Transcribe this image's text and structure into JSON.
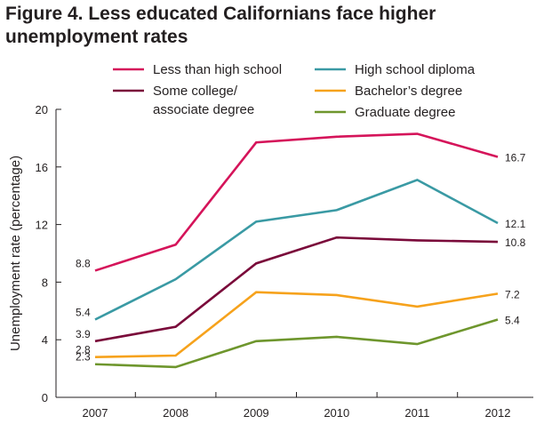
{
  "chart_data": {
    "type": "line",
    "title_line1": "Figure 4. Less educated Californians face higher",
    "title_line2": "unemployment rates",
    "ylabel": "Unemployment rate (percentage)",
    "xlabel": "",
    "categories": [
      "2007",
      "2008",
      "2009",
      "2010",
      "2011",
      "2012"
    ],
    "ylim": [
      0,
      20
    ],
    "yticks": [
      0,
      4,
      8,
      12,
      16,
      20
    ],
    "grid": false,
    "legend_placement": "top",
    "series": [
      {
        "name": "Less than high school",
        "color": "#d5145a",
        "values": [
          8.8,
          10.6,
          17.7,
          18.1,
          18.3,
          16.7
        ],
        "start_label": "8.8",
        "end_label": "16.7"
      },
      {
        "name": "High school diploma",
        "color": "#3a9aa4",
        "values": [
          5.4,
          8.2,
          12.2,
          13.0,
          15.1,
          12.1
        ],
        "start_label": "5.4",
        "end_label": "12.1"
      },
      {
        "name": "Some college/ associate degree",
        "legend_lines": [
          "Some college/",
          "associate degree"
        ],
        "color": "#7a0a3a",
        "values": [
          3.9,
          4.9,
          9.3,
          11.1,
          10.9,
          10.8
        ],
        "start_label": "3.9",
        "end_label": "10.8"
      },
      {
        "name": "Bachelor’s degree",
        "color": "#f6a21c",
        "values": [
          2.8,
          2.9,
          7.3,
          7.1,
          6.3,
          7.2
        ],
        "start_label": "2.8",
        "end_label": "7.2"
      },
      {
        "name": "Graduate degree",
        "color": "#6e962d",
        "values": [
          2.3,
          2.1,
          3.9,
          4.2,
          3.7,
          5.4
        ],
        "start_label": "2.3",
        "end_label": "5.4"
      }
    ]
  }
}
